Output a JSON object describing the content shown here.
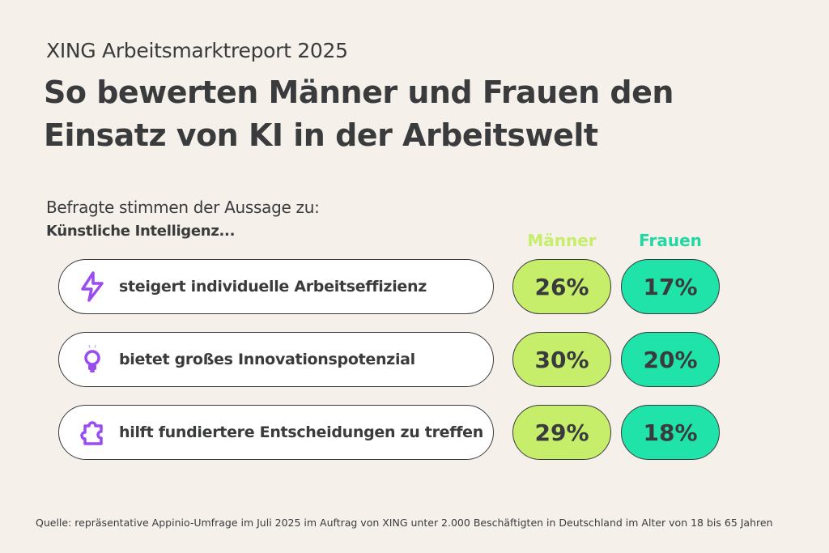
{
  "header": {
    "kicker": "XING Arbeitsmarktreport 2025",
    "headline_line1": "So bewerten Männer und Frauen den",
    "headline_line2": "Einsatz von KI in der Arbeitswelt",
    "intro": "Befragte stimmen der Aussage zu:",
    "intro_bold": "Künstliche Intelligenz..."
  },
  "colors": {
    "maenner": "#c7ee6b",
    "frauen": "#1fe3a9",
    "icon": "#9b4cf0",
    "background": "#f5f0ea"
  },
  "chart_data": {
    "type": "table",
    "columns": [
      "Männer",
      "Frauen"
    ],
    "rows": [
      {
        "icon": "lightning-icon",
        "label": "steigert individuelle Arbeitseffizienz",
        "values": [
          "26%",
          "17%"
        ]
      },
      {
        "icon": "lightbulb-icon",
        "label": "bietet großes Innovationspotenzial",
        "values": [
          "30%",
          "20%"
        ]
      },
      {
        "icon": "puzzle-icon",
        "label": "hilft fundiertere Entscheidungen zu treffen",
        "values": [
          "29%",
          "18%"
        ]
      }
    ]
  },
  "source": "Quelle: repräsentative Appinio-Umfrage im Juli 2025 im Auftrag von XING unter 2.000 Beschäftigten in Deutschland im Alter von 18 bis 65 Jahren"
}
